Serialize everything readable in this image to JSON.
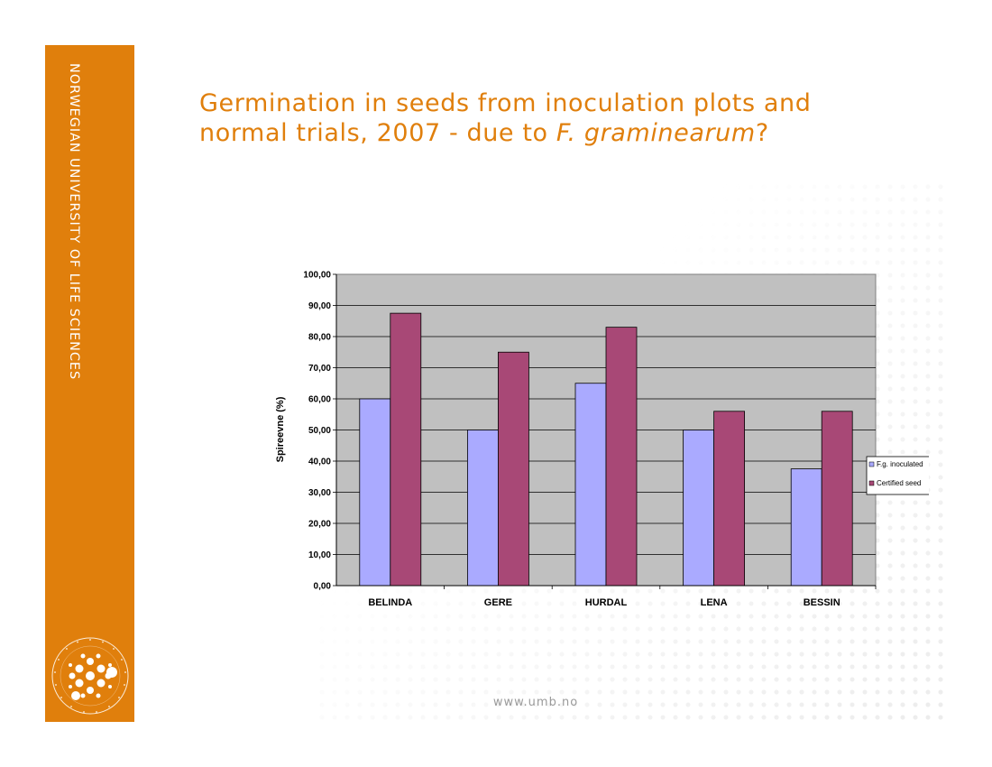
{
  "sidebar": {
    "vertical_text": "NORWEGIAN UNIVERSITY OF LIFE SCIENCES"
  },
  "slide": {
    "title_line1": "Germination in seeds  from inoculation plots and",
    "title_line2_prefix": "normal  trials, 2007 - due to ",
    "title_line2_italic": "F. graminearum",
    "title_line2_suffix": "?",
    "footer": "www.umb.no"
  },
  "chart_data": {
    "type": "bar",
    "ylabel": "Spireevne (%)",
    "ylim": [
      0,
      100
    ],
    "ytick_labels": [
      "0,00",
      "10,00",
      "20,00",
      "30,00",
      "40,00",
      "50,00",
      "60,00",
      "70,00",
      "80,00",
      "90,00",
      "100,00"
    ],
    "categories": [
      "BELINDA",
      "GERE",
      "HURDAL",
      "LENA",
      "BESSIN"
    ],
    "series": [
      {
        "name": "F.g. inoculated",
        "values": [
          60,
          50,
          65,
          50,
          37.5
        ]
      },
      {
        "name": "Certified seed",
        "values": [
          87.5,
          75,
          83,
          56,
          56
        ]
      }
    ],
    "colors": {
      "series0": "#aaaaff",
      "series1": "#a84876",
      "plot_bg": "#c0c0c0"
    },
    "grid": true,
    "legend": "right"
  }
}
